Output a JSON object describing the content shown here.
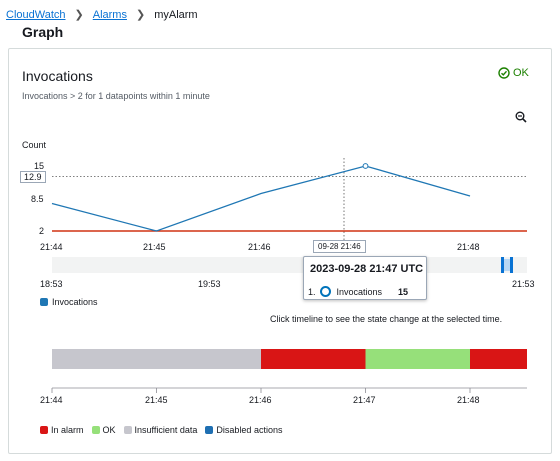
{
  "breadcrumb": {
    "items": [
      "CloudWatch",
      "Alarms"
    ],
    "current": "myAlarm"
  },
  "section_title": "Graph",
  "widget": {
    "title": "Invocations",
    "subtitle": "Invocations > 2 for 1 datapoints within 1 minute",
    "status": "OK",
    "status_color": "#1d8102"
  },
  "chart_data": {
    "type": "line",
    "ylabel": "Count",
    "y_ticks": [
      "15",
      "8.5",
      "2"
    ],
    "y_highlight": "12.9",
    "x_ticks": [
      "21:44",
      "21:45",
      "21:46",
      "21:47",
      "21:48"
    ],
    "threshold": 2,
    "threshold_color": "#d13212",
    "series": [
      {
        "name": "Invocations",
        "color": "#1f77b4",
        "x": [
          "21:44",
          "21:45",
          "21:46",
          "21:47",
          "21:48"
        ],
        "values": [
          7.5,
          2,
          9.5,
          15,
          9
        ]
      }
    ],
    "hover_x_label": "09-28 21:46",
    "legend": [
      "Invocations"
    ]
  },
  "range": {
    "start": "18:53",
    "mid": "19:53",
    "end": "21:53"
  },
  "tooltip": {
    "title": "2023-09-28 21:47 UTC",
    "index": "1.",
    "metric": "Invocations",
    "value": "15"
  },
  "hint": "Click timeline to see the state change at the selected time.",
  "timeline": {
    "segments": [
      {
        "state": "Insufficient data",
        "color": "#c6c6cd",
        "start": "21:44",
        "end": "21:46"
      },
      {
        "state": "In alarm",
        "color": "#d91515",
        "start": "21:46",
        "end": "21:47"
      },
      {
        "state": "OK",
        "color": "#96e07a",
        "start": "21:47",
        "end": "21:48"
      },
      {
        "state": "In alarm",
        "color": "#d91515",
        "start": "21:48",
        "end": "21:48+"
      }
    ],
    "ticks": [
      "21:44",
      "21:45",
      "21:46",
      "21:47",
      "21:48"
    ]
  },
  "state_legend": [
    {
      "label": "In alarm",
      "color": "#d91515"
    },
    {
      "label": "OK",
      "color": "#96e07a"
    },
    {
      "label": "Insufficient data",
      "color": "#c6c6cd"
    },
    {
      "label": "Disabled actions",
      "color": "#1f6fb2"
    }
  ]
}
